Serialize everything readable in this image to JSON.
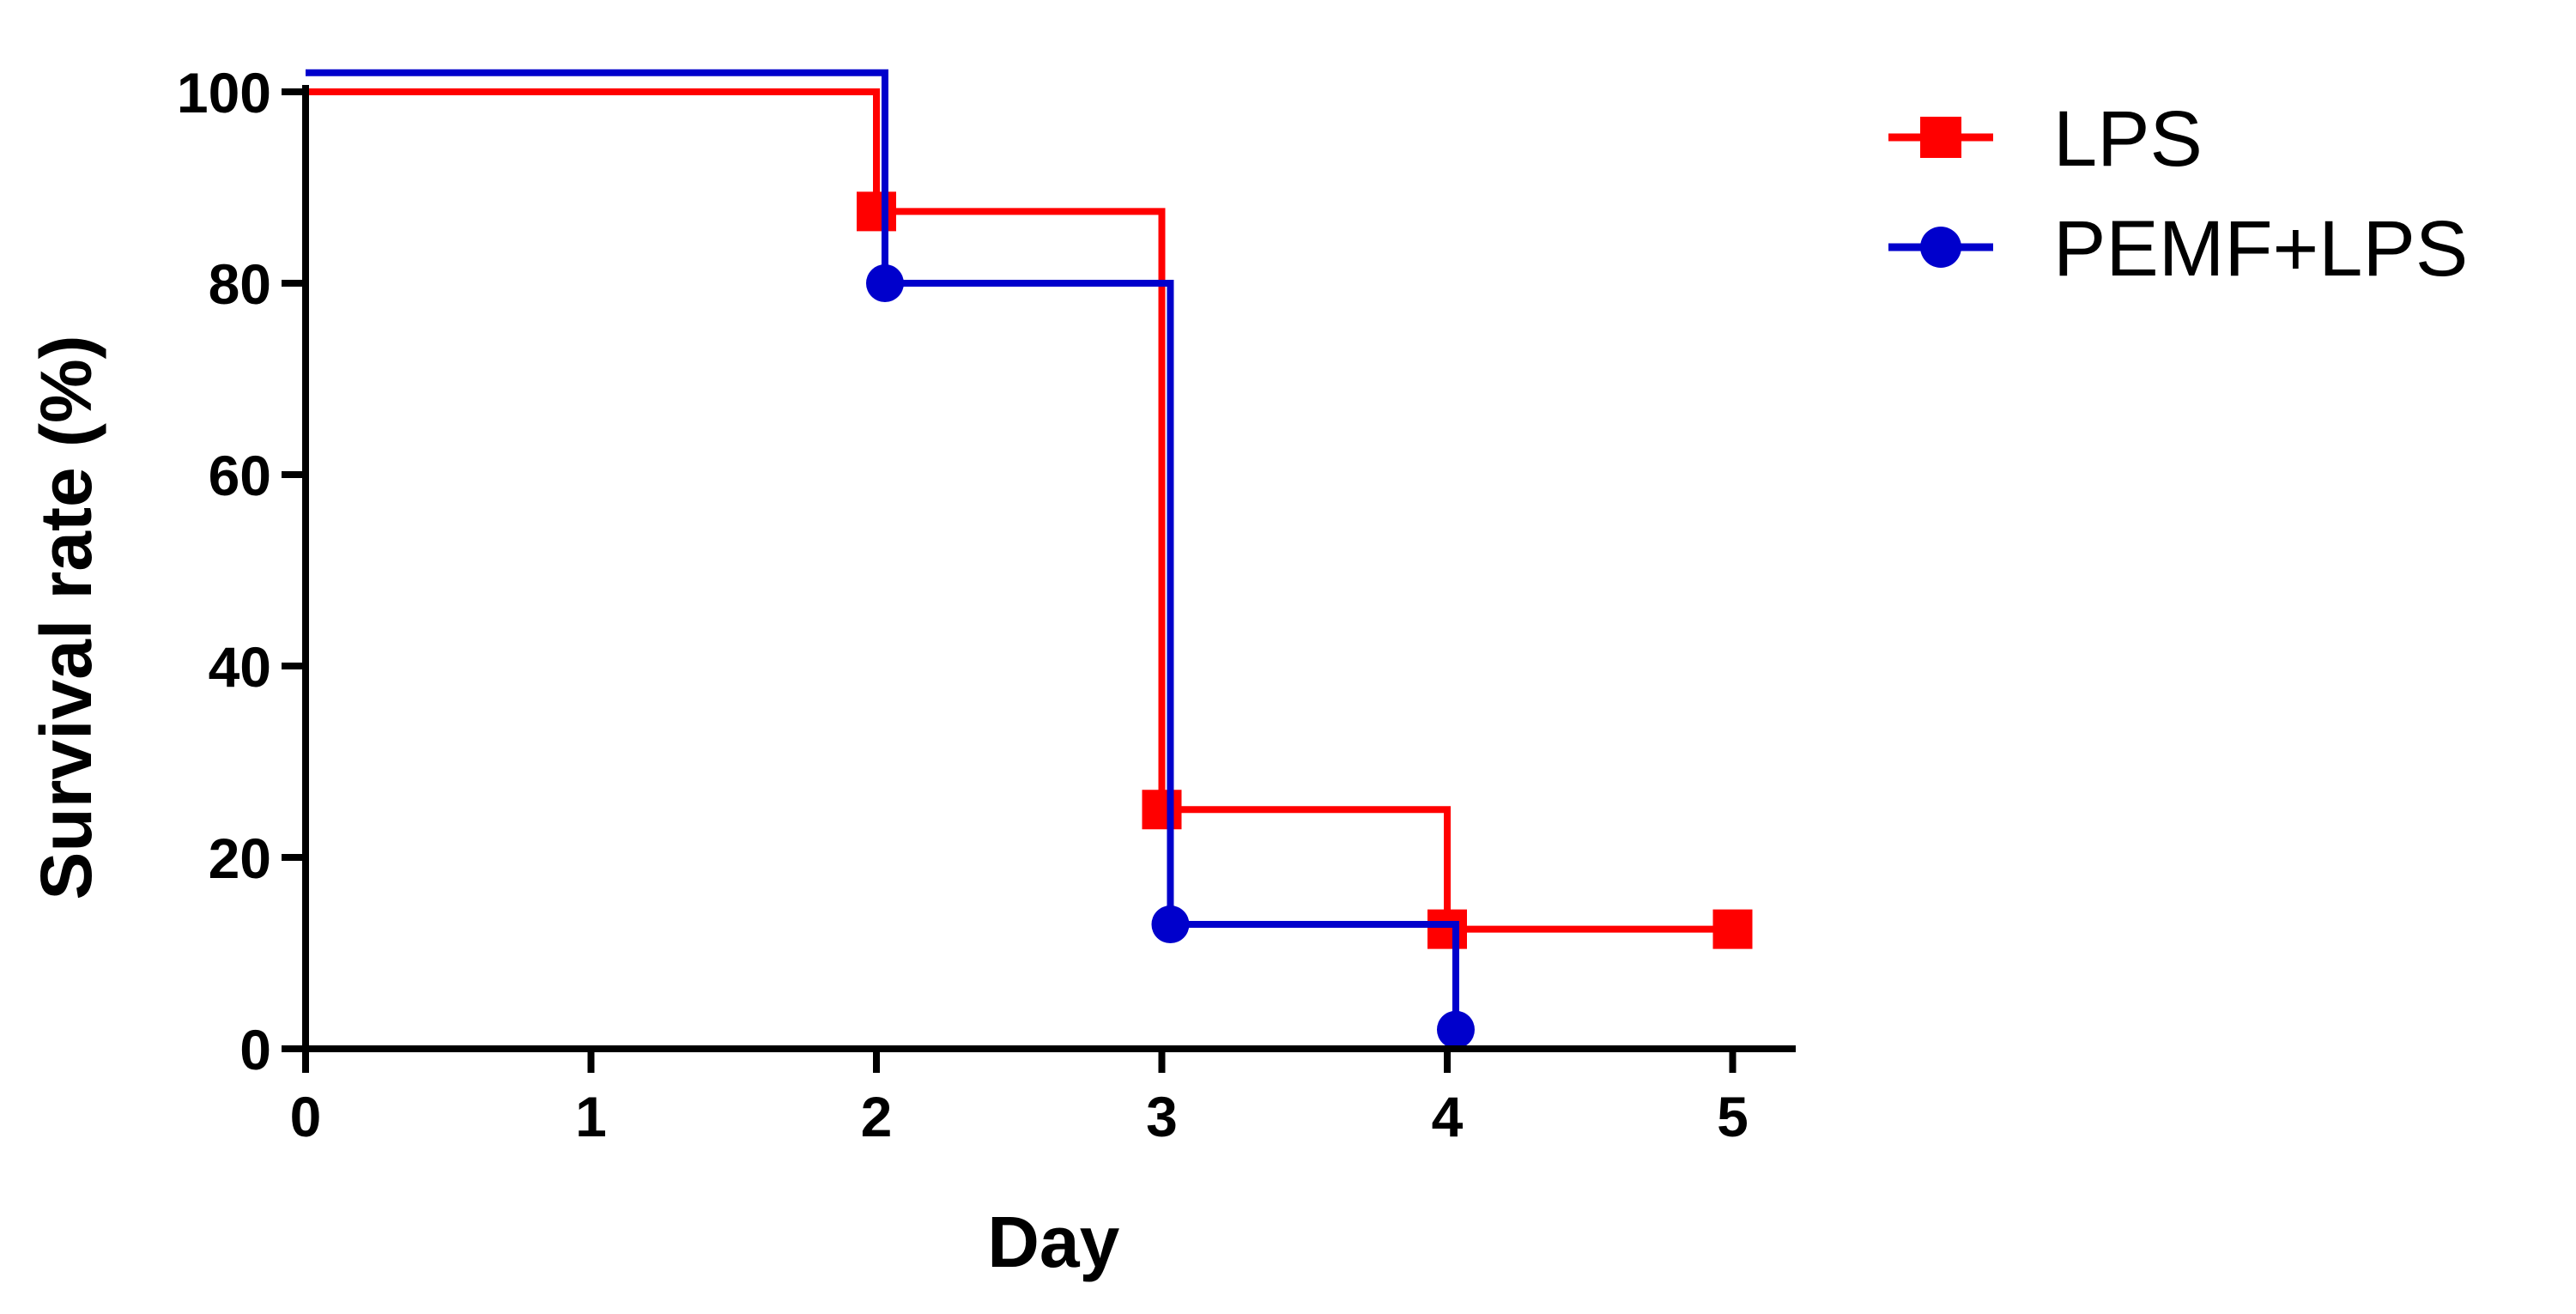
{
  "chart_data": {
    "type": "line",
    "subtype": "kaplan-meier step",
    "title": "",
    "xlabel": "Day",
    "ylabel": "Survival rate (%)",
    "xlim": [
      0,
      5.2
    ],
    "ylim": [
      0,
      100
    ],
    "xticks": [
      0,
      1,
      2,
      3,
      4,
      5
    ],
    "yticks": [
      0,
      20,
      40,
      60,
      80,
      100
    ],
    "grid": false,
    "legend_position": "top-right",
    "series": [
      {
        "name": "LPS",
        "color": "#ff0000",
        "marker": "square",
        "steps": [
          [
            0,
            100
          ],
          [
            2,
            100
          ],
          [
            2,
            87.5
          ],
          [
            3,
            87.5
          ],
          [
            3,
            25
          ],
          [
            4,
            25
          ],
          [
            4,
            12.5
          ],
          [
            5,
            12.5
          ]
        ],
        "markers": [
          [
            2,
            87.5
          ],
          [
            3,
            25
          ],
          [
            4,
            12.5
          ],
          [
            5,
            12.5
          ]
        ]
      },
      {
        "name": "PEMF+LPS",
        "color": "#0000cc",
        "marker": "circle",
        "steps": [
          [
            0,
            102
          ],
          [
            2.03,
            102
          ],
          [
            2.03,
            80
          ],
          [
            3.03,
            80
          ],
          [
            3.03,
            13
          ],
          [
            4.03,
            13
          ],
          [
            4.03,
            2
          ]
        ],
        "markers": [
          [
            2.03,
            80
          ],
          [
            3.03,
            13
          ],
          [
            4.03,
            2
          ]
        ]
      }
    ]
  }
}
